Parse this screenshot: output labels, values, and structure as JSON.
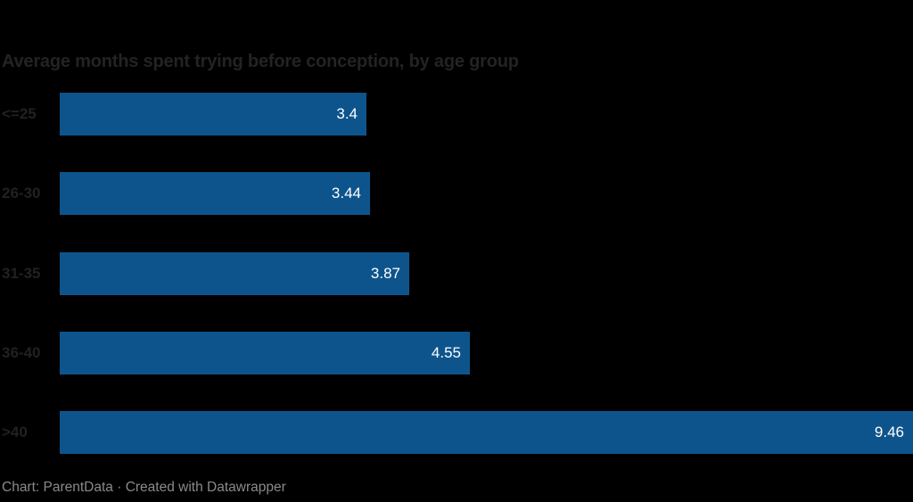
{
  "chart_data": {
    "type": "bar",
    "orientation": "horizontal",
    "title": "Average months spent trying before conception, by age group",
    "categories": [
      "<=25",
      "26-30",
      "31-35",
      "36-40",
      ">40"
    ],
    "values": [
      3.4,
      3.44,
      3.87,
      4.55,
      9.46
    ],
    "value_labels": [
      "3.4",
      "3.44",
      "3.87",
      "4.55",
      "9.46"
    ],
    "xlabel": "",
    "ylabel": "",
    "xlim": [
      0,
      9.46
    ],
    "grid": false,
    "legend": "none",
    "bar_color": "#0e548c",
    "value_label_color": "#ffffff",
    "category_label_color": "#212121",
    "title_color": "#232323",
    "background_color": "#000000",
    "value_label_position": "inside-end"
  },
  "footer": {
    "text": "Chart: ParentData · Created with Datawrapper",
    "color": "#8a8a8a"
  }
}
